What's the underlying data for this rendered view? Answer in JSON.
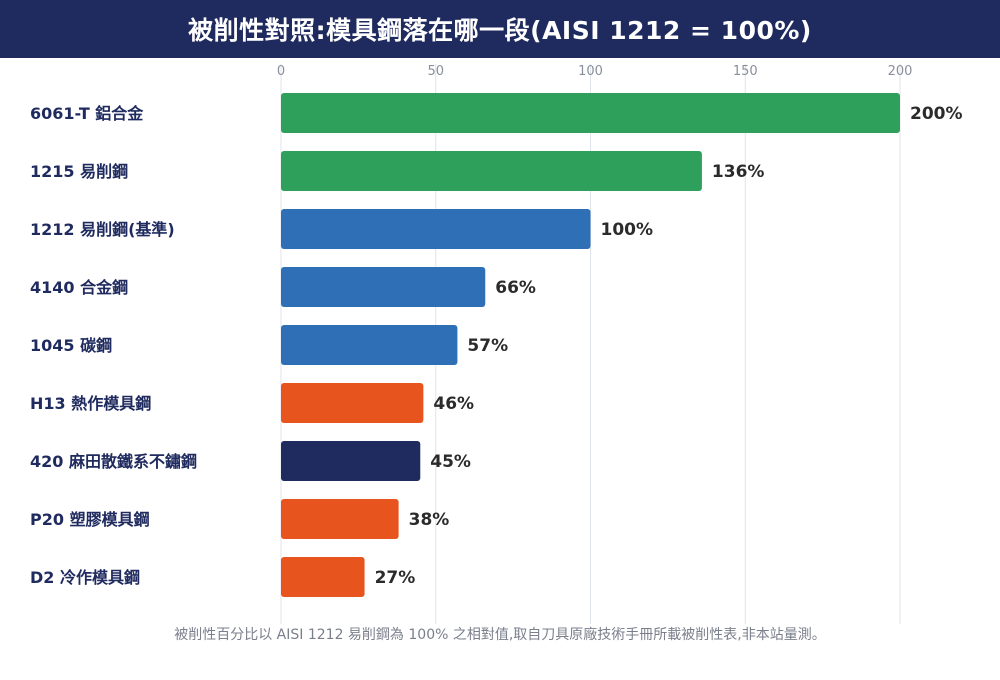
{
  "chart_data": {
    "type": "bar",
    "orientation": "horizontal",
    "title": "被削性對照:模具鋼落在哪一段(AISI 1212 = 100%)",
    "categories": [
      "6061-T 鋁合金",
      "1215 易削鋼",
      "1212 易削鋼(基準)",
      "4140 合金鋼",
      "1045 碳鋼",
      "H13 熱作模具鋼",
      "420 麻田散鐵系不鏽鋼",
      "P20 塑膠模具鋼",
      "D2 冷作模具鋼"
    ],
    "values": [
      200,
      136,
      100,
      66,
      57,
      46,
      45,
      38,
      27
    ],
    "value_labels": [
      "200%",
      "136%",
      "100%",
      "66%",
      "57%",
      "46%",
      "45%",
      "38%",
      "27%"
    ],
    "colors": [
      "#2ea05c",
      "#2ea05c",
      "#2f6fb5",
      "#2f6fb5",
      "#2f6fb5",
      "#e8541e",
      "#1f2a5e",
      "#e8541e",
      "#e8541e"
    ],
    "xlim": [
      0,
      200
    ],
    "xticks": [
      0,
      50,
      100,
      150,
      200
    ],
    "tick_position": "top",
    "grid": true,
    "footnote": "被削性百分比以 AISI 1212 易削鋼為 100% 之相對值,取自刀具原廠技術手冊所載被削性表,非本站量測。"
  },
  "theme": {
    "title_bg": "#1f2a5e",
    "label_color": "#1f2a5e",
    "value_color": "#2b2b2b",
    "tick_color": "#8a8f9c",
    "grid_color": "#dfe3ea"
  }
}
